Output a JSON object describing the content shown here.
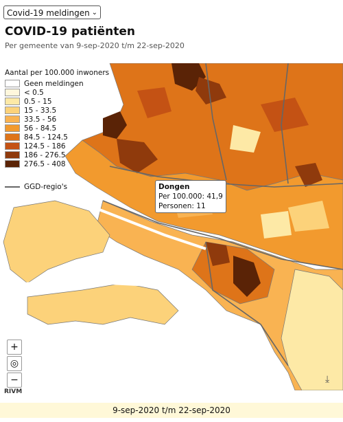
{
  "dropdown": {
    "value": "Covid-19 meldingen"
  },
  "title": "COVID-19 patiënten",
  "subtitle": "Per gemeente van 9-sep-2020 t/m 22-sep-2020",
  "legend": {
    "title": "Aantal per 100.000 inwoners",
    "items": [
      {
        "label": "Geen meldingen",
        "color": "#ffffff"
      },
      {
        "label": "< 0.5",
        "color": "#fff7dc"
      },
      {
        "label": "0.5 - 15",
        "color": "#fde9a6"
      },
      {
        "label": "15 - 33.5",
        "color": "#fcd27a"
      },
      {
        "label": "33.5 - 56",
        "color": "#f9b352"
      },
      {
        "label": "56 - 84.5",
        "color": "#f29a2e"
      },
      {
        "label": "84.5 - 124.5",
        "color": "#de7419"
      },
      {
        "label": "124.5 - 186",
        "color": "#c45214"
      },
      {
        "label": "186 - 276.5",
        "color": "#8f3a0c"
      },
      {
        "label": "276.5 - 408",
        "color": "#5a2306"
      }
    ],
    "ggd_label": "GGD-regio's"
  },
  "tooltip": {
    "name": "Dongen",
    "line1": "Per 100.000: 41,9",
    "line2": "Personen: 11"
  },
  "zoom": {
    "in": "+",
    "locate": "◎",
    "out": "−"
  },
  "attribution": "RIVM",
  "download_icon": "⤓",
  "date_range": "9-sep-2020 t/m 22-sep-2020"
}
